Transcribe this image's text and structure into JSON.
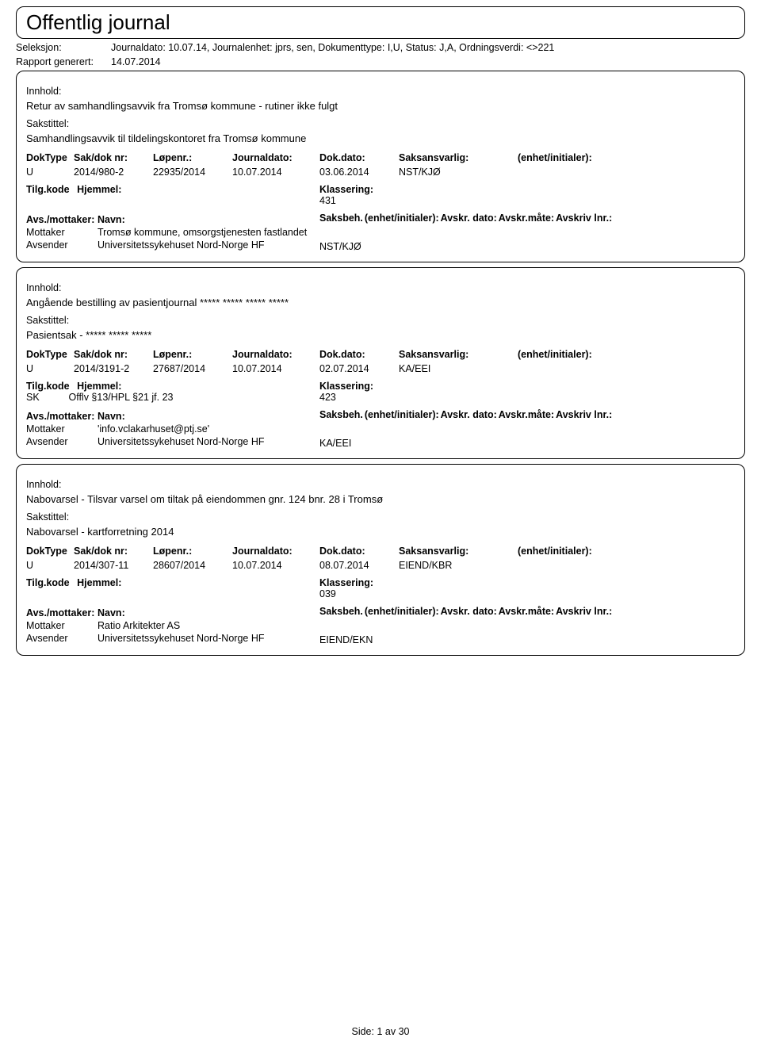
{
  "header": {
    "title": "Offentlig journal",
    "seleksjon_label": "Seleksjon:",
    "seleksjon_value": "Journaldato: 10.07.14, Journalenhet: jprs, sen, Dokumenttype: I,U, Status: J,A, Ordningsverdi: <>221",
    "rapport_label": "Rapport generert:",
    "rapport_value": "14.07.2014"
  },
  "labels": {
    "innhold": "Innhold:",
    "sakstittel": "Sakstittel:",
    "doktype": "DokType",
    "saknr": "Sak/dok nr:",
    "lopenr": "Løpenr.:",
    "journaldato": "Journaldato:",
    "dokdato": "Dok.dato:",
    "saksansvarlig": "Saksansvarlig:",
    "enhet_init": "(enhet/initialer):",
    "tilgkode": "Tilg.kode",
    "hjemmel": "Hjemmel:",
    "klassering": "Klassering:",
    "avs_mottaker": "Avs./mottaker:",
    "navn": "Navn:",
    "saksbeh": "Saksbeh.",
    "saksbeh_enhet": "(enhet/initialer):",
    "avskr_dato": "Avskr. dato:",
    "avskr_mate": "Avskr.måte:",
    "avskriv_lnr": "Avskriv lnr.:",
    "mottaker": "Mottaker",
    "avsender": "Avsender"
  },
  "entries": [
    {
      "innhold": "Retur av samhandlingsavvik fra Tromsø kommune - rutiner ikke fulgt",
      "sakstittel": "Samhandlingsavvik til tildelingskontoret fra Tromsø kommune",
      "doktype": "U",
      "saknr": "2014/980-2",
      "lopenr": "22935/2014",
      "journaldato": "10.07.2014",
      "dokdato": "03.06.2014",
      "saksansvarlig": "NST/KJØ",
      "tilgkode": "",
      "hjemmel": "",
      "klassering": "431",
      "mottaker_navn": "Tromsø kommune, omsorgstjenesten fastlandet",
      "avsender_navn": "Universitetssykehuset Nord-Norge HF",
      "saksbeh_val": "NST/KJØ"
    },
    {
      "innhold": "Angående bestilling av pasientjournal ***** ***** ***** *****",
      "sakstittel": "Pasientsak - ***** ***** *****",
      "doktype": "U",
      "saknr": "2014/3191-2",
      "lopenr": "27687/2014",
      "journaldato": "10.07.2014",
      "dokdato": "02.07.2014",
      "saksansvarlig": "KA/EEI",
      "tilgkode": "SK",
      "hjemmel": "Offlv §13/HPL §21 jf. 23",
      "klassering": "423",
      "mottaker_navn": "'info.vclakarhuset@ptj.se'",
      "avsender_navn": "Universitetssykehuset Nord-Norge HF",
      "saksbeh_val": "KA/EEI"
    },
    {
      "innhold": "Nabovarsel - Tilsvar varsel om tiltak på eiendommen gnr. 124 bnr. 28 i Tromsø",
      "sakstittel": "Nabovarsel - kartforretning 2014",
      "doktype": "U",
      "saknr": "2014/307-11",
      "lopenr": "28607/2014",
      "journaldato": "10.07.2014",
      "dokdato": "08.07.2014",
      "saksansvarlig": "EIEND/KBR",
      "tilgkode": "",
      "hjemmel": "",
      "klassering": "039",
      "mottaker_navn": "Ratio Arkitekter AS",
      "avsender_navn": "Universitetssykehuset Nord-Norge HF",
      "saksbeh_val": "EIEND/EKN"
    }
  ],
  "footer": {
    "side_label": "Side:",
    "page_current": "1",
    "av": "av",
    "page_total": "30"
  }
}
